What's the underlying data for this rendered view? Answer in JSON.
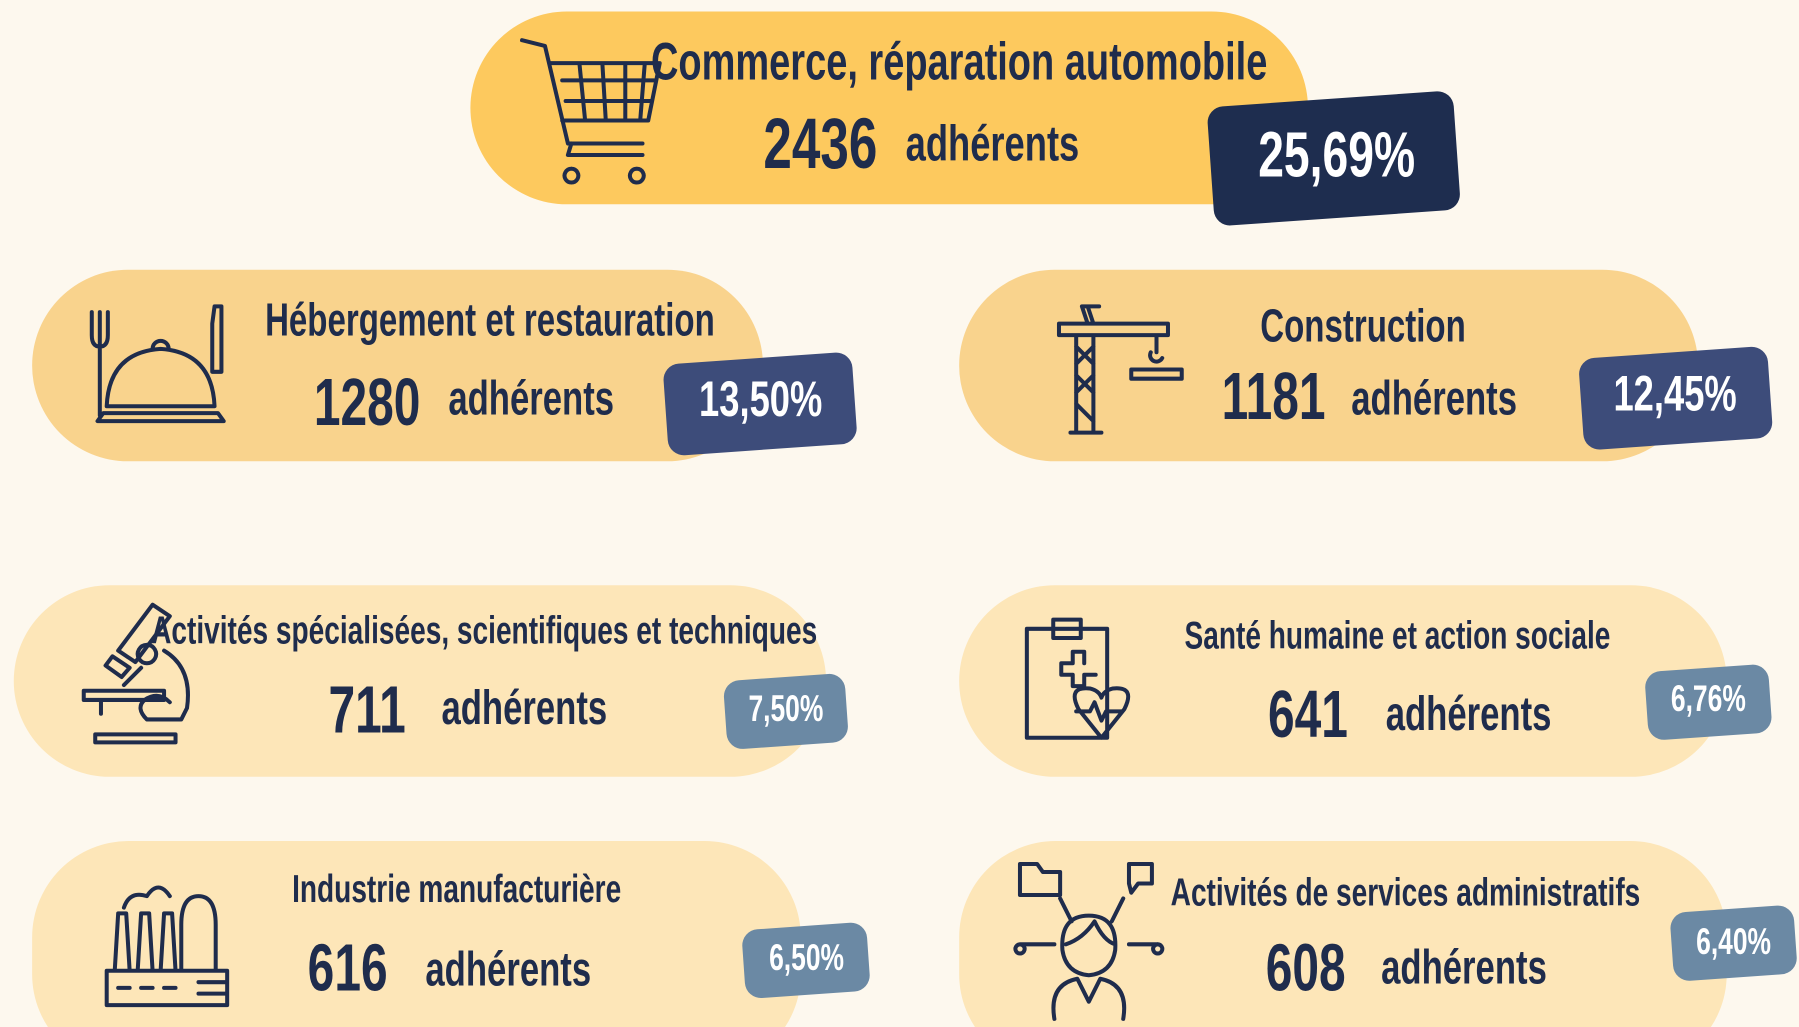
{
  "items": [
    {
      "label": "Commerce, réparation automobile",
      "count": 2436,
      "unit": "adhérents",
      "percent": "25,69%"
    },
    {
      "label": "Hébergement et restauration",
      "count": 1280,
      "unit": "adhérents",
      "percent": "13,50%"
    },
    {
      "label": "Construction",
      "count": 1181,
      "unit": "adhérents",
      "percent": "12,45%"
    },
    {
      "label": "Activités spécialisées, scientifiques et techniques",
      "count": 711,
      "unit": "adhérents",
      "percent": "7,50%"
    },
    {
      "label": "Santé humaine et action sociale",
      "count": 641,
      "unit": "adhérents",
      "percent": "6,76%"
    },
    {
      "label": "Industrie manufacturière",
      "count": 616,
      "unit": "adhérents",
      "percent": "6,50%"
    },
    {
      "label": "Activités de services administratifs",
      "count": 608,
      "unit": "adhérents",
      "percent": "6,40%"
    }
  ]
}
